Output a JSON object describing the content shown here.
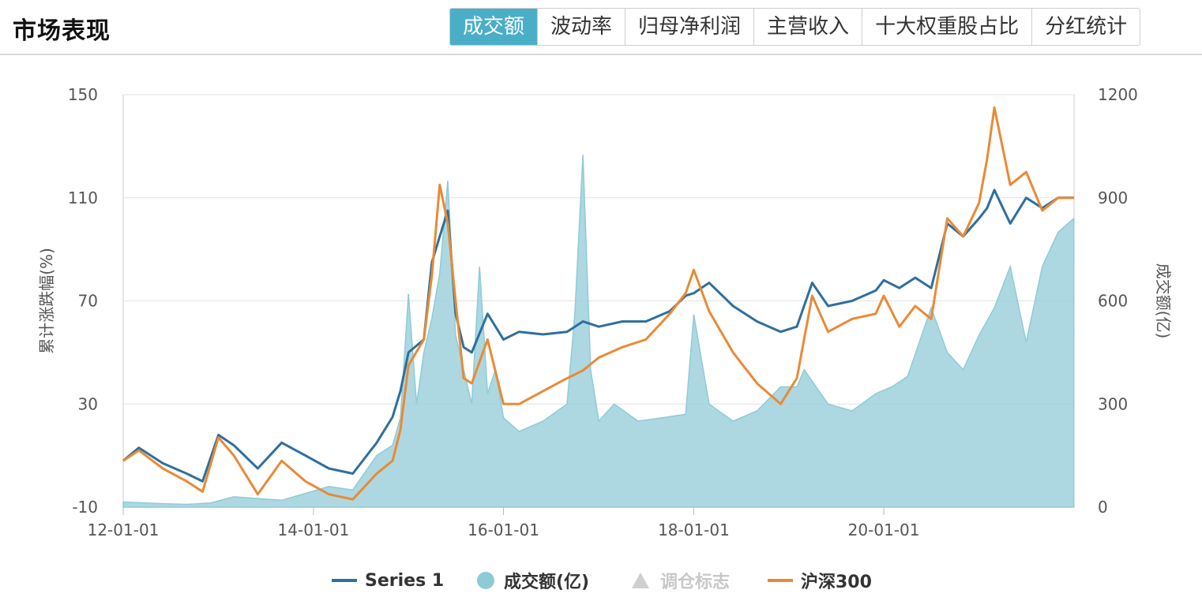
{
  "header": {
    "title": "市场表现",
    "tabs": [
      {
        "label": "成交额",
        "active": true
      },
      {
        "label": "波动率",
        "active": false
      },
      {
        "label": "归母净利润",
        "active": false
      },
      {
        "label": "主营收入",
        "active": false
      },
      {
        "label": "十大权重股占比",
        "active": false
      },
      {
        "label": "分红统计",
        "active": false
      }
    ]
  },
  "chart_data": {
    "type": "line",
    "x_axis": {
      "ticks": [
        "12-01-01",
        "14-01-01",
        "16-01-01",
        "18-01-01",
        "20-01-01"
      ],
      "range": [
        "2012-01-01",
        "2022-01-01"
      ]
    },
    "y_left": {
      "label": "累计涨跌幅(%)",
      "range": [
        -10,
        150
      ],
      "ticks": [
        -10,
        30,
        70,
        110,
        150
      ]
    },
    "y_right": {
      "label": "成交额(亿)",
      "range": [
        0,
        1200
      ],
      "ticks": [
        0,
        300,
        600,
        900,
        1200
      ]
    },
    "grid": true,
    "legend_position": "bottom",
    "series": [
      {
        "name": "Series 1",
        "type": "line",
        "axis": "left",
        "color": "#2e6f9e",
        "x": [
          "2012-01-01",
          "2012-03-01",
          "2012-06-01",
          "2012-09-01",
          "2012-11-01",
          "2013-01-01",
          "2013-03-01",
          "2013-06-01",
          "2013-09-01",
          "2013-12-01",
          "2014-03-01",
          "2014-06-01",
          "2014-09-01",
          "2014-11-01",
          "2014-12-01",
          "2015-01-01",
          "2015-03-01",
          "2015-04-01",
          "2015-05-01",
          "2015-06-01",
          "2015-07-01",
          "2015-08-01",
          "2015-09-01",
          "2015-11-01",
          "2016-01-01",
          "2016-03-01",
          "2016-06-01",
          "2016-09-01",
          "2016-11-01",
          "2017-01-01",
          "2017-04-01",
          "2017-07-01",
          "2017-10-01",
          "2017-12-01",
          "2018-01-01",
          "2018-03-01",
          "2018-06-01",
          "2018-09-01",
          "2018-12-01",
          "2019-02-01",
          "2019-04-01",
          "2019-06-01",
          "2019-09-01",
          "2019-12-01",
          "2020-01-01",
          "2020-03-01",
          "2020-05-01",
          "2020-07-01",
          "2020-09-01",
          "2020-11-01",
          "2021-01-01",
          "2021-02-01",
          "2021-03-01",
          "2021-05-01",
          "2021-07-01",
          "2021-09-01",
          "2021-11-01",
          "2021-12-31"
        ],
        "values": [
          8,
          13,
          7,
          3,
          0,
          18,
          14,
          5,
          15,
          10,
          5,
          3,
          15,
          25,
          35,
          50,
          55,
          85,
          95,
          105,
          65,
          52,
          50,
          65,
          55,
          58,
          57,
          58,
          62,
          60,
          62,
          62,
          66,
          72,
          73,
          77,
          68,
          62,
          58,
          60,
          77,
          68,
          70,
          74,
          78,
          75,
          79,
          75,
          100,
          95,
          102,
          106,
          113,
          100,
          110,
          106,
          110,
          110
        ]
      },
      {
        "name": "成交额(亿)",
        "type": "area",
        "axis": "right",
        "color": "#9fd1dc",
        "x": [
          "2012-01-01",
          "2012-06-01",
          "2012-09-01",
          "2012-12-01",
          "2013-03-01",
          "2013-06-01",
          "2013-09-01",
          "2013-12-01",
          "2014-03-01",
          "2014-06-01",
          "2014-09-01",
          "2014-11-01",
          "2014-12-01",
          "2015-01-01",
          "2015-02-01",
          "2015-03-01",
          "2015-04-01",
          "2015-05-01",
          "2015-06-01",
          "2015-07-01",
          "2015-08-01",
          "2015-09-01",
          "2015-10-01",
          "2015-11-01",
          "2015-12-01",
          "2016-01-01",
          "2016-03-01",
          "2016-06-01",
          "2016-09-01",
          "2016-10-01",
          "2016-11-01",
          "2016-12-01",
          "2017-01-01",
          "2017-03-01",
          "2017-06-01",
          "2017-09-01",
          "2017-12-01",
          "2018-01-01",
          "2018-03-01",
          "2018-06-01",
          "2018-09-01",
          "2018-12-01",
          "2019-02-01",
          "2019-03-01",
          "2019-06-01",
          "2019-09-01",
          "2019-12-01",
          "2020-02-01",
          "2020-04-01",
          "2020-07-01",
          "2020-09-01",
          "2020-11-01",
          "2021-01-01",
          "2021-03-01",
          "2021-05-01",
          "2021-07-01",
          "2021-09-01",
          "2021-11-01",
          "2021-12-31"
        ],
        "values": [
          15,
          10,
          8,
          12,
          30,
          25,
          20,
          40,
          60,
          50,
          150,
          180,
          260,
          620,
          300,
          450,
          550,
          680,
          950,
          500,
          400,
          300,
          700,
          330,
          400,
          260,
          220,
          250,
          300,
          560,
          1025,
          400,
          250,
          300,
          250,
          260,
          270,
          560,
          300,
          250,
          280,
          350,
          350,
          400,
          300,
          280,
          330,
          350,
          380,
          580,
          450,
          400,
          500,
          580,
          700,
          480,
          700,
          800,
          840
        ]
      },
      {
        "name": "调仓标志",
        "type": "marker",
        "axis": "left",
        "color": "#cfcfcf",
        "hidden": true,
        "x": [],
        "values": []
      },
      {
        "name": "沪深300",
        "type": "line",
        "axis": "left",
        "color": "#e98a36",
        "x": [
          "2012-01-01",
          "2012-03-01",
          "2012-06-01",
          "2012-09-01",
          "2012-11-01",
          "2013-01-01",
          "2013-03-01",
          "2013-06-01",
          "2013-09-01",
          "2013-12-01",
          "2014-03-01",
          "2014-06-01",
          "2014-09-01",
          "2014-11-01",
          "2014-12-01",
          "2015-01-01",
          "2015-03-01",
          "2015-04-01",
          "2015-05-01",
          "2015-06-01",
          "2015-07-01",
          "2015-08-01",
          "2015-09-01",
          "2015-11-01",
          "2016-01-01",
          "2016-03-01",
          "2016-06-01",
          "2016-09-01",
          "2016-11-01",
          "2017-01-01",
          "2017-04-01",
          "2017-07-01",
          "2017-10-01",
          "2017-12-01",
          "2018-01-01",
          "2018-03-01",
          "2018-06-01",
          "2018-09-01",
          "2018-12-01",
          "2019-02-01",
          "2019-04-01",
          "2019-06-01",
          "2019-09-01",
          "2019-12-01",
          "2020-01-01",
          "2020-03-01",
          "2020-05-01",
          "2020-07-01",
          "2020-09-01",
          "2020-11-01",
          "2021-01-01",
          "2021-02-01",
          "2021-03-01",
          "2021-05-01",
          "2021-07-01",
          "2021-09-01",
          "2021-11-01",
          "2021-12-31"
        ],
        "values": [
          8,
          12,
          5,
          0,
          -4,
          17,
          10,
          -5,
          8,
          0,
          -5,
          -7,
          3,
          8,
          20,
          45,
          55,
          80,
          115,
          100,
          70,
          40,
          38,
          55,
          30,
          30,
          35,
          40,
          43,
          48,
          52,
          55,
          65,
          73,
          82,
          66,
          50,
          38,
          30,
          40,
          72,
          58,
          63,
          65,
          72,
          60,
          68,
          63,
          102,
          95,
          108,
          125,
          145,
          115,
          120,
          105,
          110,
          110
        ]
      }
    ]
  },
  "legend": [
    {
      "label": "Series 1",
      "icon": "line-icon",
      "color": "#2e6f9e",
      "active": true
    },
    {
      "label": "成交额(亿)",
      "icon": "dot-icon",
      "color": "#8fcbd6",
      "active": true
    },
    {
      "label": "调仓标志",
      "icon": "triangle-icon",
      "color": "#cfcfcf",
      "active": false
    },
    {
      "label": "沪深300",
      "icon": "line-icon",
      "color": "#e98a36",
      "active": true
    }
  ]
}
